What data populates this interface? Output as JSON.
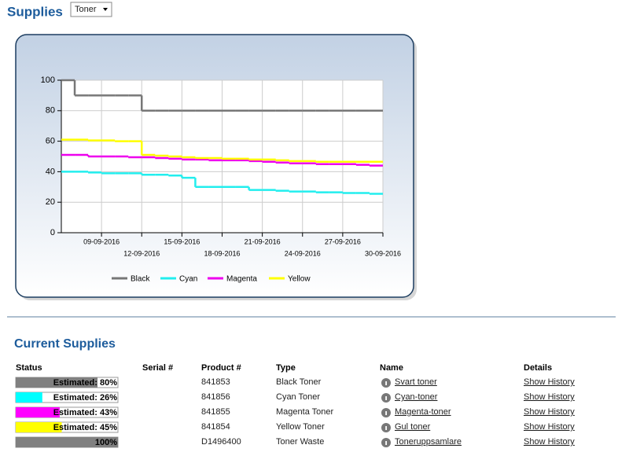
{
  "header": {
    "title": "Supplies",
    "select": "Toner"
  },
  "chart_data": {
    "type": "line",
    "step": true,
    "x": [
      "06-09-2016",
      "07-09-2016",
      "08-09-2016",
      "09-09-2016",
      "10-09-2016",
      "11-09-2016",
      "12-09-2016",
      "13-09-2016",
      "14-09-2016",
      "15-09-2016",
      "16-09-2016",
      "17-09-2016",
      "18-09-2016",
      "19-09-2016",
      "20-09-2016",
      "21-09-2016",
      "22-09-2016",
      "23-09-2016",
      "24-09-2016",
      "25-09-2016",
      "26-09-2016",
      "27-09-2016",
      "28-09-2016",
      "29-09-2016",
      "30-09-2016"
    ],
    "series": [
      {
        "name": "Black",
        "color": "#777777",
        "values": [
          100,
          90,
          90,
          90,
          90,
          90,
          80,
          80,
          80,
          80,
          80,
          80,
          80,
          80,
          80,
          80,
          80,
          80,
          80,
          80,
          80,
          80,
          80,
          80,
          80
        ]
      },
      {
        "name": "Cyan",
        "color": "#22eeee",
        "values": [
          40,
          40,
          39.5,
          39,
          39,
          39,
          38,
          38,
          37.5,
          36,
          30,
          30,
          30,
          30,
          28,
          28,
          27.5,
          27,
          27,
          26.5,
          26.5,
          26,
          26,
          25.5,
          25.5
        ]
      },
      {
        "name": "Magenta",
        "color": "#ee00ee",
        "values": [
          51,
          51,
          50,
          50,
          50,
          49.5,
          49.5,
          49,
          48.5,
          48,
          48,
          47.5,
          47.5,
          47.5,
          47,
          46.5,
          46,
          45.5,
          45.5,
          45,
          45,
          45,
          44.5,
          44,
          44
        ]
      },
      {
        "name": "Yellow",
        "color": "#ffff00",
        "values": [
          61,
          61,
          60.5,
          60.5,
          60,
          60,
          51,
          50.5,
          50,
          49.5,
          49,
          49,
          48.5,
          48.5,
          48,
          48,
          47.5,
          47,
          47,
          46.5,
          46.5,
          46.5,
          46.5,
          46.5,
          46.5
        ]
      }
    ],
    "xlim": [
      "06-09-2016",
      "30-09-2016"
    ],
    "xticks": [
      "09-09-2016",
      "12-09-2016",
      "15-09-2016",
      "18-09-2016",
      "21-09-2016",
      "24-09-2016",
      "27-09-2016",
      "30-09-2016"
    ],
    "ylim": [
      0,
      100
    ],
    "yticks": [
      0,
      20,
      40,
      60,
      80,
      100
    ],
    "grid": true,
    "legend": "bottom"
  },
  "section": {
    "title": "Current Supplies",
    "columns": [
      "Status",
      "Serial #",
      "Product #",
      "Type",
      "Name",
      "Details"
    ],
    "rows": [
      {
        "status": {
          "label": "Estimated: 80%",
          "value": 80,
          "color": "#808080"
        },
        "product": "841853",
        "type": "Black Toner",
        "name": "Svart toner",
        "details": "Show History"
      },
      {
        "status": {
          "label": "Estimated: 26%",
          "value": 26,
          "color": "#00ffff"
        },
        "product": "841856",
        "type": "Cyan Toner",
        "name": "Cyan-toner",
        "details": "Show History"
      },
      {
        "status": {
          "label": "Estimated: 43%",
          "value": 43,
          "color": "#ff00ff"
        },
        "product": "841855",
        "type": "Magenta Toner",
        "name": "Magenta-toner",
        "details": "Show History"
      },
      {
        "status": {
          "label": "Estimated: 45%",
          "value": 45,
          "color": "#ffff00"
        },
        "product": "841854",
        "type": "Yellow Toner",
        "name": "Gul toner",
        "details": "Show History"
      },
      {
        "status": {
          "label": "100%",
          "value": 100,
          "color": "#808080"
        },
        "product": "D1496400",
        "type": "Toner Waste",
        "name": "Toneruppsamlare",
        "details": "Show History"
      }
    ]
  }
}
